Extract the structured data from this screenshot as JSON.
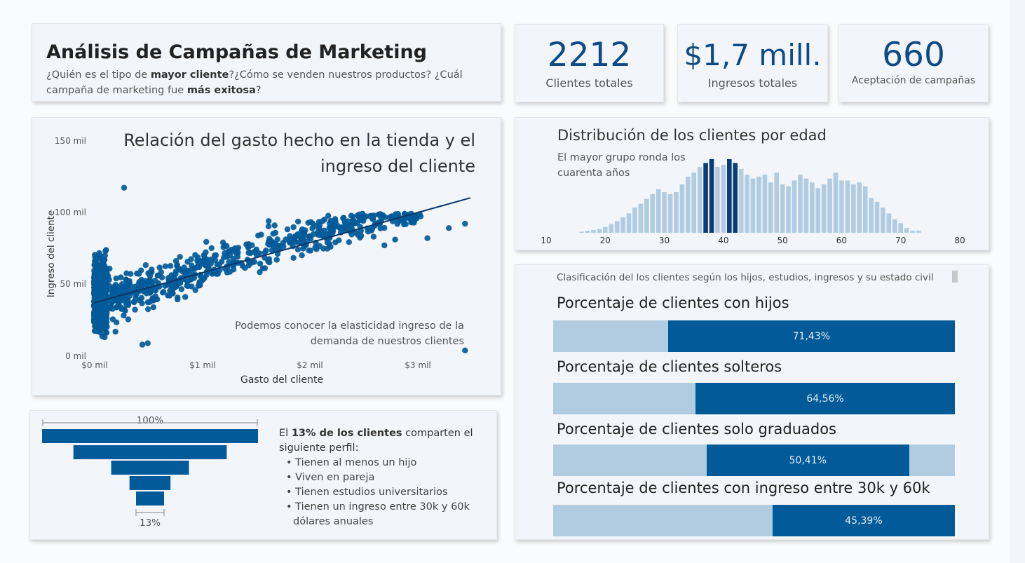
{
  "header": {
    "title": "Análisis de Campañas de Marketing",
    "subtitle_parts": [
      "¿Quién es el tipo de ",
      "mayor cliente",
      "?¿Cómo se venden nuestros productos? ¿Cuál campaña de marketing fue ",
      "más exitosa",
      "?"
    ]
  },
  "kpis": [
    {
      "value": "2212",
      "label": "Clientes totales"
    },
    {
      "value": "$1,7 mill.",
      "label": "Ingresos totales"
    },
    {
      "value": "660",
      "label": "Aceptación de campañas"
    }
  ],
  "colors": {
    "primary": "#035a98",
    "light": "#b1cce0",
    "dark": "#0a3766",
    "kpi": "#0e4a86"
  },
  "scatter": {
    "title": "Relación del gasto hecho en la tienda y el ingreso del cliente",
    "note": "Podemos conocer la elasticidad ingreso  de la demanda de nuestros clientes",
    "xlabel": "Gasto del cliente",
    "ylabel": "Ingreso del cliente",
    "y_ticks": [
      "150 mil",
      "100 mil",
      "50 mil",
      "0 mil"
    ],
    "x_ticks": [
      "$0 mil",
      "$1 mil",
      "$2 mil",
      "$3 mil"
    ]
  },
  "histogram": {
    "title": "Distribución de los clientes por edad",
    "note": "El mayor grupo ronda los cuarenta años",
    "x_ticks": [
      "10",
      "20",
      "30",
      "40",
      "50",
      "60",
      "70",
      "80"
    ]
  },
  "classification": {
    "title": "Clasificación del los clientes según los hijos, estudios, ingresos y su estado civil",
    "bars": [
      {
        "title": "Porcentaje de clientes con hijos",
        "label": "71,43%",
        "value": 71.43
      },
      {
        "title": "Porcentaje de clientes solteros",
        "label": "64,56%",
        "value": 64.56
      },
      {
        "title": "Porcentaje de clientes solo graduados",
        "label": "50,41%",
        "value": 50.41
      },
      {
        "title": "Porcentaje de clientes con ingreso entre 30k y 60k",
        "label": "45,39%",
        "value": 45.39
      }
    ]
  },
  "funnel": {
    "top_label": "100%",
    "bottom_label": "13%",
    "profile_intro_bold": "13% de los clientes",
    "profile_intro_pre": "El ",
    "profile_intro_post": " comparten el siguiente perfil:",
    "items": [
      "Tienen al menos un hijo",
      "Viven en pareja",
      "Tienen estudios universitarios",
      "Tienen un ingreso entre 30k y 60k dólares anuales"
    ]
  },
  "chart_data": [
    {
      "type": "scatter",
      "title": "Relación del gasto hecho en la tienda y el ingreso del cliente",
      "xlabel": "Gasto del cliente",
      "ylabel": "Ingreso del cliente",
      "xlim": [
        0,
        3.5
      ],
      "ylim": [
        0,
        150
      ],
      "x_unit": "mil $",
      "y_unit": "mil",
      "trendline": [
        [
          0,
          36
        ],
        [
          3.5,
          109
        ]
      ],
      "sample_points": [
        [
          0.28,
          116
        ],
        [
          2.7,
          76
        ],
        [
          0.2,
          16
        ],
        [
          3.45,
          3
        ],
        [
          0.45,
          7
        ],
        [
          0.5,
          8
        ],
        [
          0.8,
          68
        ],
        [
          1.0,
          65
        ],
        [
          1.2,
          78
        ],
        [
          1.5,
          72
        ],
        [
          1.7,
          66
        ],
        [
          1.9,
          78
        ],
        [
          2.0,
          82
        ],
        [
          2.2,
          75
        ],
        [
          2.4,
          86
        ],
        [
          2.6,
          82
        ],
        [
          2.8,
          80
        ],
        [
          3.1,
          81
        ],
        [
          3.3,
          88
        ],
        [
          3.45,
          91
        ],
        [
          0.2,
          40
        ],
        [
          0.3,
          52
        ],
        [
          0.4,
          45
        ],
        [
          0.6,
          55
        ],
        [
          0.1,
          30
        ]
      ]
    },
    {
      "type": "bar",
      "title": "Distribución de los clientes por edad",
      "xlim": [
        10,
        80
      ],
      "x": [
        16,
        17,
        18,
        19,
        20,
        21,
        22,
        23,
        24,
        25,
        26,
        27,
        28,
        29,
        30,
        31,
        32,
        33,
        34,
        35,
        36,
        37,
        38,
        39,
        40,
        41,
        42,
        43,
        44,
        45,
        46,
        47,
        48,
        49,
        50,
        51,
        52,
        53,
        54,
        55,
        56,
        57,
        58,
        59,
        60,
        61,
        62,
        63,
        64,
        65,
        66,
        67,
        68,
        69,
        70,
        71,
        72,
        73
      ],
      "values": [
        1,
        2,
        3,
        4,
        6,
        9,
        12,
        16,
        20,
        26,
        30,
        35,
        40,
        45,
        42,
        40,
        42,
        50,
        58,
        62,
        68,
        72,
        76,
        68,
        70,
        76,
        72,
        66,
        60,
        56,
        58,
        60,
        52,
        62,
        50,
        48,
        54,
        60,
        56,
        52,
        46,
        50,
        56,
        62,
        54,
        54,
        50,
        52,
        48,
        36,
        32,
        26,
        20,
        14,
        10,
        5,
        2,
        2
      ],
      "highlight": [
        37,
        38,
        41,
        42
      ]
    },
    {
      "type": "bar",
      "title": "Clasificación del los clientes según los hijos, estudios, ingresos y su estado civil",
      "categories": [
        "Porcentaje de clientes con hijos",
        "Porcentaje de clientes solteros",
        "Porcentaje de clientes solo graduados",
        "Porcentaje de clientes con ingreso entre 30k y 60k"
      ],
      "values": [
        71.43,
        64.56,
        50.41,
        45.39
      ]
    },
    {
      "type": "bar",
      "title": "",
      "categories": [
        "100%",
        "",
        "",
        "",
        "13%"
      ],
      "values": [
        100,
        71,
        36,
        19,
        13
      ]
    }
  ]
}
